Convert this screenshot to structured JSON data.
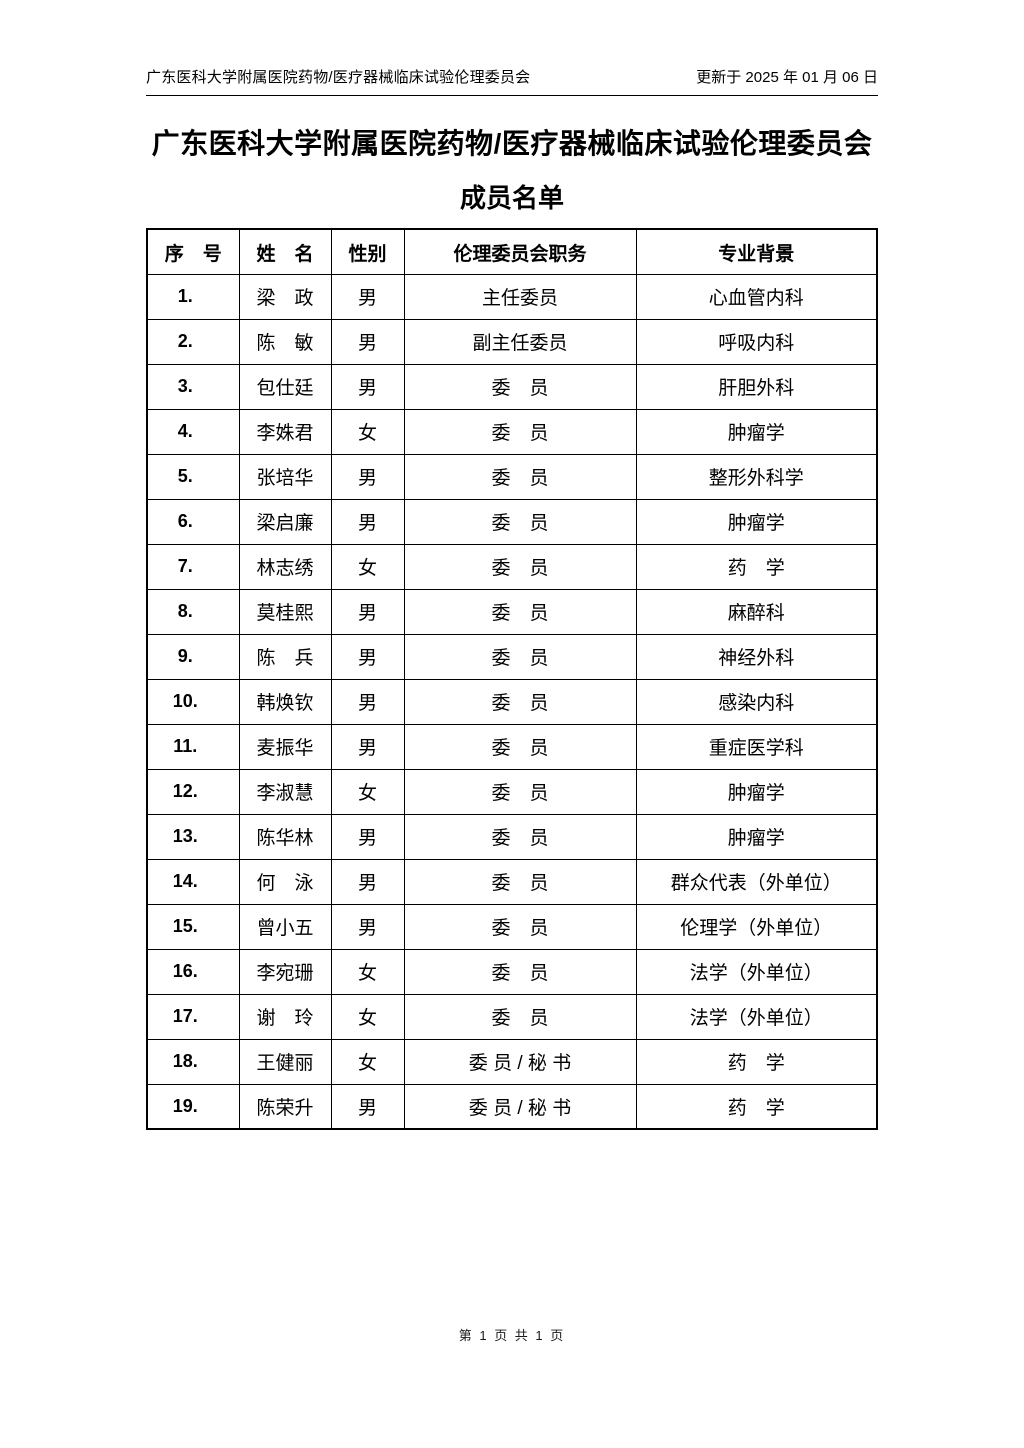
{
  "header": {
    "left": "广东医科大学附属医院药物/医疗器械临床试验伦理委员会",
    "right": "更新于 2025 年 01 月 06 日"
  },
  "title": {
    "line1": "广东医科大学附属医院药物/医疗器械临床试验伦理委员会",
    "line2": "成员名单"
  },
  "table": {
    "columns": [
      "序　号",
      "姓　名",
      "性别",
      "伦理委员会职务",
      "专业背景"
    ],
    "column_names": [
      "row-number",
      "member-name",
      "gender",
      "committee-role",
      "professional-background"
    ],
    "rows": [
      [
        "1.",
        "梁　政",
        "男",
        "主任委员",
        "心血管内科"
      ],
      [
        "2.",
        "陈　敏",
        "男",
        "副主任委员",
        "呼吸内科"
      ],
      [
        "3.",
        "包仕廷",
        "男",
        "委　员",
        "肝胆外科"
      ],
      [
        "4.",
        "李姝君",
        "女",
        "委　员",
        "肿瘤学"
      ],
      [
        "5.",
        "张培华",
        "男",
        "委　员",
        "整形外科学"
      ],
      [
        "6.",
        "梁启廉",
        "男",
        "委　员",
        "肿瘤学"
      ],
      [
        "7.",
        "林志绣",
        "女",
        "委　员",
        "药　学"
      ],
      [
        "8.",
        "莫桂熙",
        "男",
        "委　员",
        "麻醉科"
      ],
      [
        "9.",
        "陈　兵",
        "男",
        "委　员",
        "神经外科"
      ],
      [
        "10.",
        "韩焕钦",
        "男",
        "委　员",
        "感染内科"
      ],
      [
        "11.",
        "麦振华",
        "男",
        "委　员",
        "重症医学科"
      ],
      [
        "12.",
        "李淑慧",
        "女",
        "委　员",
        "肿瘤学"
      ],
      [
        "13.",
        "陈华林",
        "男",
        "委　员",
        "肿瘤学"
      ],
      [
        "14.",
        "何　泳",
        "男",
        "委　员",
        "群众代表（外单位）"
      ],
      [
        "15.",
        "曾小五",
        "男",
        "委　员",
        "伦理学（外单位）"
      ],
      [
        "16.",
        "李宛珊",
        "女",
        "委　员",
        "法学（外单位）"
      ],
      [
        "17.",
        "谢　玲",
        "女",
        "委　员",
        "法学（外单位）"
      ],
      [
        "18.",
        "王健丽",
        "女",
        "委 员 / 秘 书",
        "药　学"
      ],
      [
        "19.",
        "陈荣升",
        "男",
        "委 员 / 秘 书",
        "药　学"
      ]
    ]
  },
  "footer": {
    "page_indicator": "第 1 页 共 1 页"
  }
}
